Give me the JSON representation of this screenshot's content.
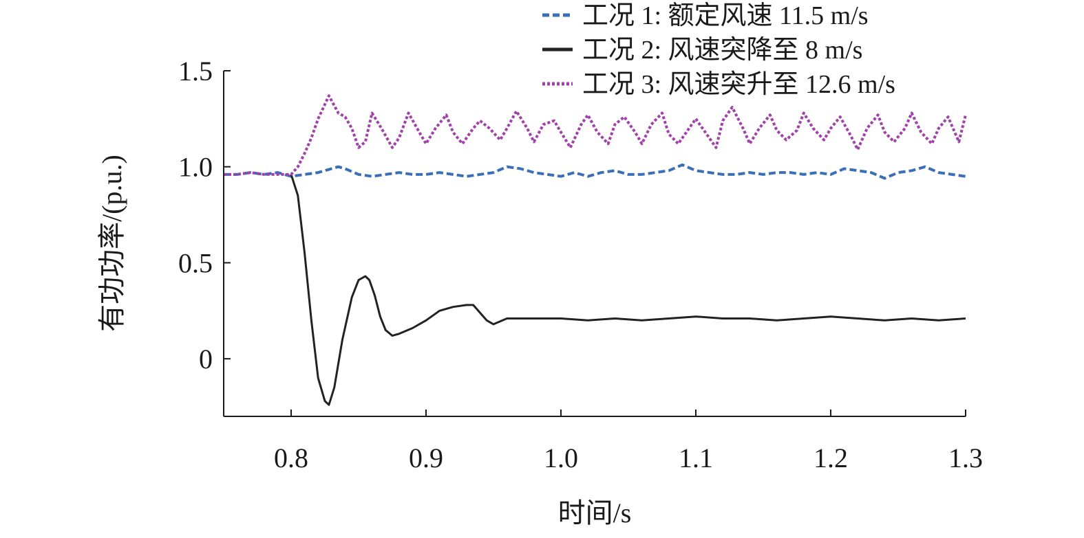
{
  "chart_data": {
    "type": "line",
    "title": "",
    "xlabel": "时间/s",
    "ylabel": "有功功率/(p.u.)",
    "xlim": [
      0.75,
      1.3
    ],
    "ylim": [
      -0.3,
      1.5
    ],
    "xticks": [
      0.8,
      0.9,
      1.0,
      1.1,
      1.2,
      1.3
    ],
    "xtick_labels": [
      "0.8",
      "0.9",
      "1.0",
      "1.1",
      "1.2",
      "1.3"
    ],
    "yticks": [
      0,
      0.5,
      1.0,
      1.5
    ],
    "ytick_labels": [
      "0",
      "0.5",
      "1.0",
      "1.5"
    ],
    "grid": false,
    "legend_position": "top-right",
    "series": [
      {
        "name": "工况 1: 额定风速 11.5 m/s",
        "color": "#3a6fb8",
        "dash": "dashed",
        "x": [
          0.75,
          0.76,
          0.77,
          0.78,
          0.79,
          0.8,
          0.81,
          0.82,
          0.83,
          0.835,
          0.84,
          0.85,
          0.86,
          0.87,
          0.88,
          0.89,
          0.9,
          0.91,
          0.92,
          0.93,
          0.94,
          0.95,
          0.96,
          0.97,
          0.98,
          0.99,
          1.0,
          1.01,
          1.02,
          1.03,
          1.04,
          1.05,
          1.06,
          1.07,
          1.08,
          1.09,
          1.1,
          1.11,
          1.12,
          1.13,
          1.14,
          1.15,
          1.16,
          1.17,
          1.18,
          1.19,
          1.2,
          1.21,
          1.22,
          1.23,
          1.24,
          1.25,
          1.26,
          1.27,
          1.28,
          1.29,
          1.3
        ],
        "y": [
          0.96,
          0.96,
          0.97,
          0.96,
          0.97,
          0.95,
          0.96,
          0.97,
          0.99,
          1.0,
          0.99,
          0.96,
          0.95,
          0.96,
          0.97,
          0.96,
          0.96,
          0.97,
          0.96,
          0.95,
          0.96,
          0.97,
          1.0,
          0.99,
          0.97,
          0.96,
          0.95,
          0.97,
          0.95,
          0.97,
          0.98,
          0.96,
          0.96,
          0.97,
          0.98,
          1.01,
          0.98,
          0.97,
          0.96,
          0.96,
          0.97,
          0.96,
          0.97,
          0.97,
          0.96,
          0.97,
          0.96,
          0.99,
          0.98,
          0.97,
          0.94,
          0.97,
          0.98,
          1.0,
          0.97,
          0.96,
          0.95
        ]
      },
      {
        "name": "工况 2: 风速突降至 8 m/s",
        "color": "#222222",
        "dash": "solid",
        "x": [
          0.8,
          0.805,
          0.81,
          0.815,
          0.82,
          0.825,
          0.828,
          0.832,
          0.838,
          0.845,
          0.85,
          0.855,
          0.858,
          0.862,
          0.866,
          0.87,
          0.875,
          0.88,
          0.89,
          0.9,
          0.91,
          0.92,
          0.93,
          0.935,
          0.94,
          0.945,
          0.95,
          0.96,
          0.98,
          1.0,
          1.02,
          1.04,
          1.06,
          1.08,
          1.1,
          1.12,
          1.14,
          1.16,
          1.18,
          1.2,
          1.22,
          1.24,
          1.26,
          1.28,
          1.3
        ],
        "y": [
          0.96,
          0.85,
          0.55,
          0.2,
          -0.1,
          -0.22,
          -0.24,
          -0.15,
          0.1,
          0.32,
          0.41,
          0.43,
          0.41,
          0.33,
          0.22,
          0.15,
          0.12,
          0.13,
          0.16,
          0.2,
          0.25,
          0.27,
          0.28,
          0.28,
          0.24,
          0.2,
          0.18,
          0.21,
          0.21,
          0.21,
          0.2,
          0.21,
          0.2,
          0.21,
          0.22,
          0.21,
          0.21,
          0.2,
          0.21,
          0.22,
          0.21,
          0.2,
          0.21,
          0.2,
          0.21
        ]
      },
      {
        "name": "工况 3: 风速突升至 12.6 m/s",
        "color": "#a040a8",
        "dash": "dotted",
        "x": [
          0.75,
          0.76,
          0.77,
          0.78,
          0.79,
          0.8,
          0.805,
          0.81,
          0.815,
          0.82,
          0.828,
          0.835,
          0.84,
          0.845,
          0.85,
          0.855,
          0.86,
          0.867,
          0.875,
          0.88,
          0.887,
          0.895,
          0.9,
          0.907,
          0.915,
          0.92,
          0.927,
          0.935,
          0.94,
          0.947,
          0.955,
          0.96,
          0.967,
          0.975,
          0.98,
          0.987,
          0.995,
          1.0,
          1.007,
          1.015,
          1.02,
          1.027,
          1.035,
          1.04,
          1.047,
          1.055,
          1.06,
          1.067,
          1.075,
          1.08,
          1.087,
          1.095,
          1.1,
          1.107,
          1.115,
          1.12,
          1.127,
          1.135,
          1.14,
          1.147,
          1.155,
          1.16,
          1.167,
          1.175,
          1.18,
          1.187,
          1.195,
          1.2,
          1.207,
          1.215,
          1.22,
          1.227,
          1.235,
          1.24,
          1.247,
          1.255,
          1.26,
          1.267,
          1.275,
          1.28,
          1.287,
          1.295,
          1.3
        ],
        "y": [
          0.96,
          0.96,
          0.97,
          0.96,
          0.96,
          0.96,
          1.0,
          1.07,
          1.15,
          1.25,
          1.37,
          1.28,
          1.26,
          1.2,
          1.1,
          1.13,
          1.28,
          1.2,
          1.1,
          1.15,
          1.28,
          1.18,
          1.12,
          1.2,
          1.27,
          1.18,
          1.12,
          1.2,
          1.24,
          1.2,
          1.14,
          1.2,
          1.29,
          1.2,
          1.13,
          1.22,
          1.24,
          1.18,
          1.1,
          1.22,
          1.27,
          1.18,
          1.12,
          1.22,
          1.26,
          1.18,
          1.12,
          1.22,
          1.28,
          1.17,
          1.12,
          1.2,
          1.25,
          1.18,
          1.1,
          1.24,
          1.31,
          1.2,
          1.12,
          1.2,
          1.27,
          1.19,
          1.14,
          1.19,
          1.28,
          1.2,
          1.14,
          1.2,
          1.26,
          1.16,
          1.09,
          1.2,
          1.27,
          1.18,
          1.13,
          1.2,
          1.28,
          1.18,
          1.12,
          1.2,
          1.26,
          1.13,
          1.27
        ]
      }
    ]
  }
}
